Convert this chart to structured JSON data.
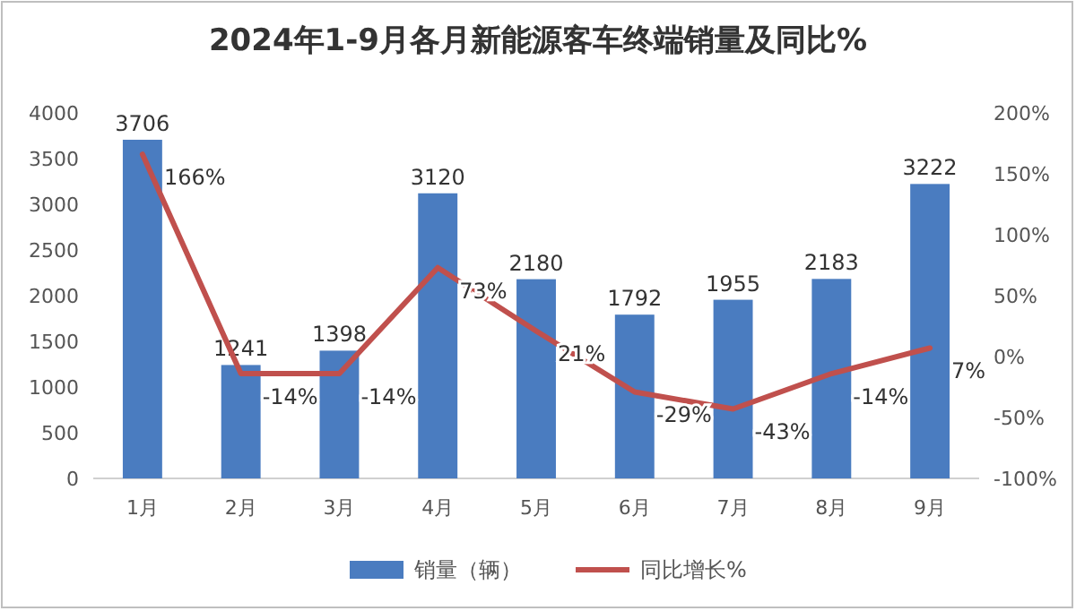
{
  "chart_data": {
    "type": "bar",
    "title": "2024年1-9月各月新能源客车终端销量及同比%",
    "categories": [
      "1月",
      "2月",
      "3月",
      "4月",
      "5月",
      "6月",
      "7月",
      "8月",
      "9月"
    ],
    "series": [
      {
        "name": "销量（辆）",
        "type": "bar",
        "color": "#4a7cc0",
        "values": [
          3706,
          1241,
          1398,
          3120,
          2180,
          1792,
          1955,
          2183,
          3222
        ],
        "value_labels": [
          "3706",
          "1241",
          "1398",
          "3120",
          "2180",
          "1792",
          "1955",
          "2183",
          "3222"
        ]
      },
      {
        "name": "同比增长%",
        "type": "line",
        "axis": "y2",
        "color": "#c0504d",
        "values": [
          166,
          -14,
          -14,
          73,
          21,
          -29,
          -43,
          -14,
          7
        ],
        "value_labels": [
          "166%",
          "-14%",
          "-14%",
          "73%",
          "21%",
          "-29%",
          "-43%",
          "-14%",
          "7%"
        ]
      }
    ],
    "ylim": [
      0,
      4000
    ],
    "yticks": [
      0,
      500,
      1000,
      1500,
      2000,
      2500,
      3000,
      3500,
      4000
    ],
    "y2lim": [
      -100,
      200
    ],
    "y2ticks": [
      {
        "value": -100,
        "label": "-100%"
      },
      {
        "value": -50,
        "label": "-50%"
      },
      {
        "value": 0,
        "label": "0%"
      },
      {
        "value": 50,
        "label": "50%"
      },
      {
        "value": 100,
        "label": "100%"
      },
      {
        "value": 150,
        "label": "150%"
      },
      {
        "value": 200,
        "label": "200%"
      }
    ],
    "legend": "bottom",
    "marker": "none",
    "line_style": "solid"
  }
}
